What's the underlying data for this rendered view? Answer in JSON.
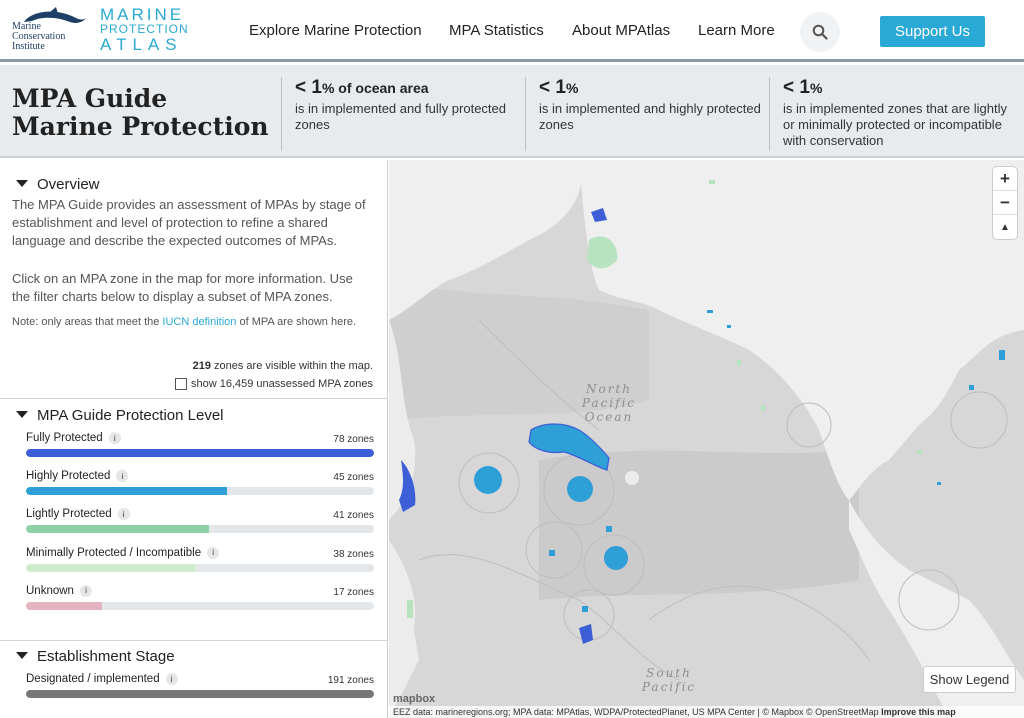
{
  "header": {
    "mci_logo": [
      "Marine",
      "Conservation",
      "Institute"
    ],
    "atlas_logo": [
      "MARINE",
      "PROTECTION",
      "ATLAS"
    ],
    "nav": [
      "Explore Marine Protection",
      "MPA Statistics",
      "About MPAtlas",
      "Learn More"
    ],
    "search_icon": "search-icon",
    "support_label": "Support Us",
    "brand_color": "#2aa9d6"
  },
  "title_band": {
    "title_line1": "MPA Guide",
    "title_line2": "Marine Protection",
    "stats": [
      {
        "big": "< 1",
        "unit": "% of ocean area",
        "desc": "is in implemented and fully protected zones"
      },
      {
        "big": "< 1",
        "unit": "%",
        "desc": "is in implemented and highly protected zones"
      },
      {
        "big": "< 1",
        "unit": "%",
        "desc": "is in implemented zones that are lightly or minimally protected or incompatible with conservation"
      }
    ]
  },
  "sidebar": {
    "overview": {
      "heading": "Overview",
      "para1": "The MPA Guide provides an assessment of MPAs by stage of establishment and level of protection to refine a shared language and describe the expected outcomes of MPAs.",
      "para2": "Click on an MPA zone in the map for more information. Use the filter charts below to display a subset of MPA zones.",
      "note_before": "Note: only areas that meet the ",
      "note_link": "IUCN definition",
      "note_after": " of MPA are shown here.",
      "visible_count": "219",
      "visible_text": " zones are visible within the map.",
      "unassessed_label": "show 16,459 unassessed MPA zones"
    },
    "protection": {
      "heading": "MPA Guide Protection Level",
      "levels": [
        {
          "label": "Fully Protected",
          "count": "78 zones",
          "fraction": 1.0,
          "color": "#3c5ed6"
        },
        {
          "label": "Highly Protected",
          "count": "45 zones",
          "fraction": 0.577,
          "color": "#2f9fd8"
        },
        {
          "label": "Lightly Protected",
          "count": "41 zones",
          "fraction": 0.526,
          "color": "#8ed1a6"
        },
        {
          "label": "Minimally Protected / Incompatible",
          "count": "38 zones",
          "fraction": 0.487,
          "color": "#cdeccd"
        },
        {
          "label": "Unknown",
          "count": "17 zones",
          "fraction": 0.218,
          "color": "#e4b4c0"
        }
      ]
    },
    "establishment": {
      "heading": "Establishment Stage",
      "stages": [
        {
          "label": "Designated / implemented",
          "count": "191 zones",
          "fraction": 1.0,
          "color": "#777777"
        }
      ]
    }
  },
  "map": {
    "labels": {
      "north_pacific": [
        "North",
        "Pacific",
        "Ocean"
      ],
      "south_pacific": [
        "South",
        "Pacific"
      ]
    },
    "zoom_in": "+",
    "zoom_out": "−",
    "compass": "▲",
    "legend_button": "Show Legend",
    "mapbox_logo": "mapbox",
    "attribution": "EEZ data: marineregions.org; MPA data: MPAtlas, WDPA/ProtectedPlanet, US MPA Center | © Mapbox © OpenStreetMap",
    "improve_link": "Improve this map"
  }
}
